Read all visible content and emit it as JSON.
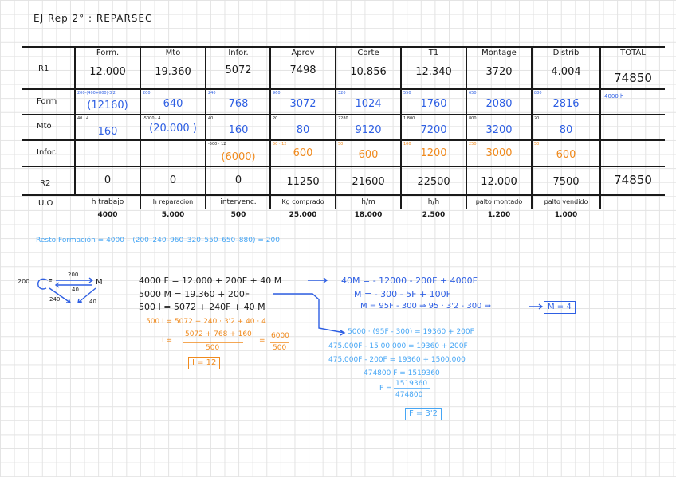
{
  "title": "EJ Rep 2° : REPARSEC",
  "table": {
    "headers": [
      "Form.",
      "Mto",
      "Infor.",
      "Aprov",
      "Corte",
      "T1",
      "Montage",
      "Distrib",
      "TOTAL"
    ],
    "rows": {
      "r1": {
        "label": "R1",
        "values": [
          "12.000",
          "19.360",
          "5072",
          "7498",
          "10.856",
          "12.340",
          "3720",
          "4.004"
        ],
        "total": "74850"
      },
      "form": {
        "label": "Form",
        "notes": [
          "200-(400+800)·3'2",
          "200",
          "240",
          "960",
          "320",
          "550",
          "650",
          "880"
        ],
        "values": [
          "(12160)",
          "640",
          "768",
          "3072",
          "1024",
          "1760",
          "2080",
          "2816"
        ],
        "total_note": "4000 h"
      },
      "mto": {
        "label": "Mto",
        "notes": [
          "40 · 4",
          "-5000 · 4",
          "40",
          "20",
          "2280",
          "1.800",
          "800",
          "20"
        ],
        "values": [
          "160",
          "(20.000 )",
          "160",
          "80",
          "9120",
          "7200",
          "3200",
          "80"
        ]
      },
      "infor": {
        "label": "Infor.",
        "notes": [
          "",
          "",
          "-500 · 12",
          "50 · 12",
          "50",
          "100",
          "250",
          "50"
        ],
        "values": [
          "",
          "",
          "(6000)",
          "600",
          "600",
          "1200",
          "3000",
          "600"
        ]
      },
      "r2": {
        "label": "R2",
        "values": [
          "0",
          "0",
          "0",
          "11250",
          "21600",
          "22500",
          "12.000",
          "7500"
        ],
        "total": "74850"
      },
      "uo": {
        "label": "U.O",
        "units": [
          "h trabajo",
          "h reparacion",
          "intervenc.",
          "Kg comprado",
          "h/m",
          "h/h",
          "palto montado",
          "palto vendido"
        ],
        "unit_values": [
          "4000",
          "5.000",
          "500",
          "25.000",
          "18.000",
          "2.500",
          "1.200",
          "1.000"
        ]
      }
    }
  },
  "resto": "Resto Formación = 4000 – (200–240–960–320–550–650–880) = 200",
  "diagram": {
    "left_value": "200",
    "node_f": "F",
    "node_m": "M",
    "node_i": "I",
    "arrow_fm_top": "200",
    "arrow_fm_bottom": "40",
    "arrow_fi": "240",
    "arrow_mi": "40"
  },
  "equations": {
    "eq1": "4000 F = 12.000 + 200F + 40 M",
    "eq2": "5000 M = 19.360 + 200F",
    "eq3": "500 I = 5072 + 240F + 40 M",
    "i1": "500 I = 5072 + 240 · 3'2 + 40 · 4",
    "i2_lhs": "I =",
    "i2_num": "5072 + 768 + 160",
    "i2_den": "500",
    "i2_eq": "=",
    "i2_rnum": "6000",
    "i2_rden": "500",
    "i_result": "I = 12",
    "m1": "40M = - 12000 - 200F + 4000F",
    "m2": "M = - 300 - 5F + 100F",
    "m3": "M = 95F - 300 ⇒ 95 · 3'2 - 300 ⇒",
    "m_result": "M = 4",
    "f1": "5000 · (95F - 300) = 19360 + 200F",
    "f2": "475.000F - 15 00.000 = 19360 + 200F",
    "f3": "475.000F - 200F = 19360 + 1500.000",
    "f4": "474800 F = 1519360",
    "f5_lhs": "F =",
    "f5_num": "1519360",
    "f5_den": "474800",
    "f_result": "F = 3'2"
  },
  "colors": {
    "ink": "#1a1a1a",
    "blue": "#2e5fe3",
    "orange": "#f08a1d",
    "light_blue": "#46a6f5",
    "grid": "#e3e3e3"
  }
}
